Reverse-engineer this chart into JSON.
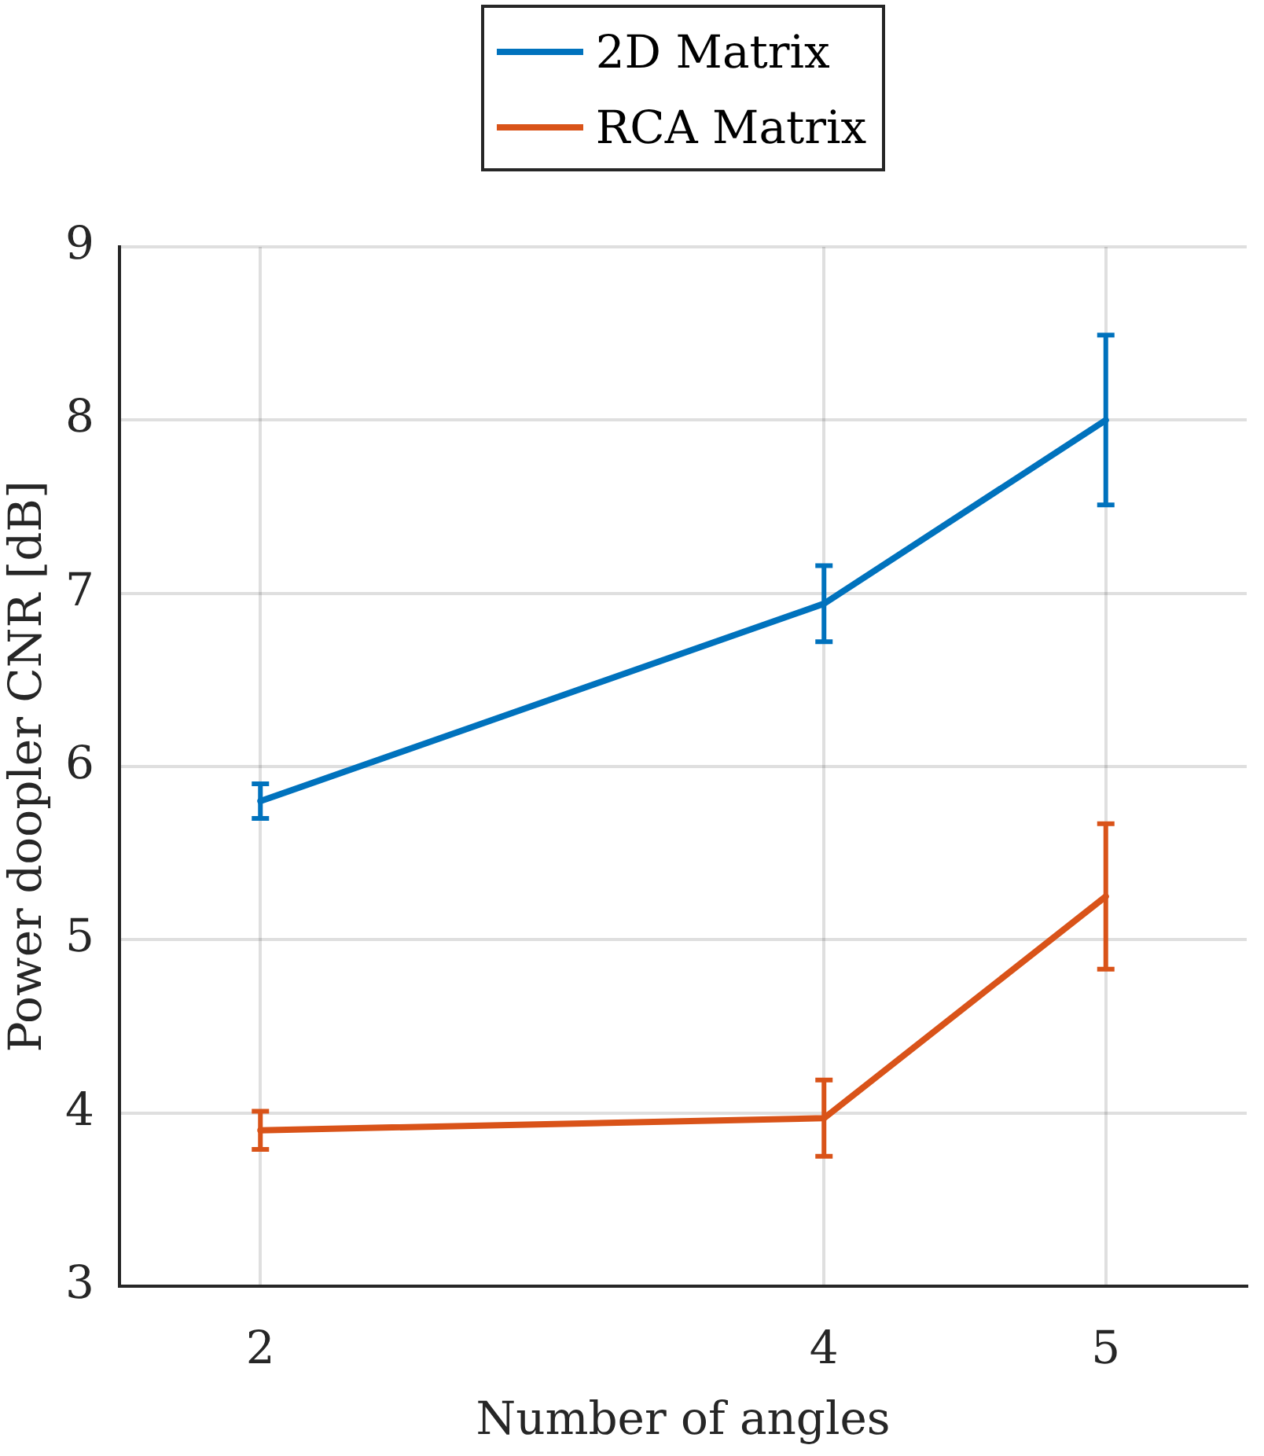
{
  "chart_data": {
    "type": "line",
    "xlabel": "Number of angles",
    "ylabel": "Power doopler CNR [dB]",
    "x": [
      2,
      4,
      5
    ],
    "series": [
      {
        "name": "2D Matrix",
        "color": "#0072bd",
        "values": [
          5.8,
          6.94,
          8.0
        ],
        "errors": [
          0.1,
          0.22,
          0.49
        ]
      },
      {
        "name": "RCA Matrix",
        "color": "#d95319",
        "values": [
          3.9,
          3.97,
          5.25
        ],
        "errors": [
          0.11,
          0.22,
          0.42
        ]
      }
    ],
    "xlim": [
      1.5,
      5.5
    ],
    "xticks": [
      2,
      4,
      5
    ],
    "ylim": [
      3,
      9
    ],
    "yticks": [
      3,
      4,
      5,
      6,
      7,
      8,
      9
    ],
    "grid": true,
    "legend": "top",
    "marker": "none",
    "line_style": "solid"
  }
}
